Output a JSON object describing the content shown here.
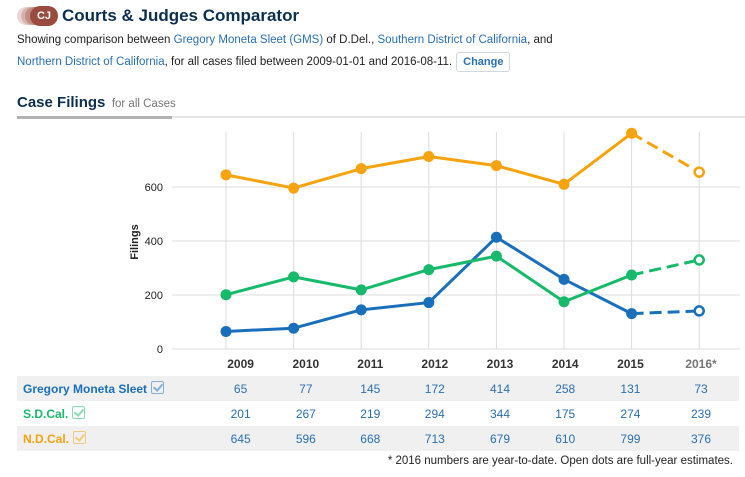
{
  "header": {
    "logo_text": "CJ",
    "title": "Courts & Judges Comparator",
    "desc_prefix": "Showing comparison between ",
    "judge_link": "Gregory Moneta Sleet (GMS)",
    "desc_mid1": " of D.Del., ",
    "court1_link": "Southern District of California",
    "desc_mid2": ", and ",
    "court2_link": "Northern District of California",
    "desc_suffix": ", for all cases filed between 2009-01-01 and 2016-08-11.",
    "change_label": "Change"
  },
  "section": {
    "title": "Case Filings",
    "subtitle": "for all Cases"
  },
  "chart_data": {
    "type": "line",
    "title": "Case Filings for all Cases",
    "xlabel": "",
    "ylabel": "Filings",
    "categories": [
      "2009",
      "2010",
      "2011",
      "2012",
      "2013",
      "2014",
      "2015",
      "2016*"
    ],
    "ylim": [
      0,
      800
    ],
    "yticks": [
      0,
      200,
      400,
      600
    ],
    "grid": true,
    "series": [
      {
        "name": "Gregory Moneta Sleet",
        "color": "#1a6fba",
        "values": [
          65,
          77,
          145,
          172,
          414,
          258,
          131,
          73
        ],
        "estimate_2016": 141
      },
      {
        "name": "S.D.Cal.",
        "color": "#17b96b",
        "values": [
          201,
          267,
          219,
          294,
          344,
          175,
          274,
          239
        ],
        "estimate_2016": 330
      },
      {
        "name": "N.D.Cal.",
        "color": "#f5a30f",
        "values": [
          645,
          596,
          668,
          713,
          679,
          610,
          799,
          376
        ],
        "estimate_2016": 655
      }
    ],
    "annotation": "2016 values shown as open dots are full-year estimates (dashed lines)"
  },
  "table": {
    "headers": [
      "2009",
      "2010",
      "2011",
      "2012",
      "2013",
      "2014",
      "2015",
      "2016*"
    ],
    "rows": [
      {
        "label": "Gregory Moneta Sleet",
        "values": [
          "65",
          "77",
          "145",
          "172",
          "414",
          "258",
          "131",
          "73"
        ]
      },
      {
        "label": "S.D.Cal.",
        "values": [
          "201",
          "267",
          "219",
          "294",
          "344",
          "175",
          "274",
          "239"
        ]
      },
      {
        "label": "N.D.Cal.",
        "values": [
          "645",
          "596",
          "668",
          "713",
          "679",
          "610",
          "799",
          "376"
        ]
      }
    ]
  },
  "footnote": "* 2016 numbers are year-to-date. Open dots are full-year estimates."
}
